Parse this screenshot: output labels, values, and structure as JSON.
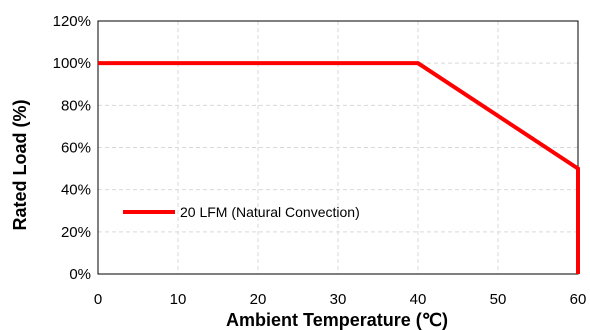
{
  "chart_data": {
    "type": "line",
    "xlabel": "Ambient Temperature (℃)",
    "ylabel": "Rated Load (%)",
    "xlim": [
      0,
      60
    ],
    "ylim": [
      0,
      120
    ],
    "x_ticks": [
      0,
      10,
      20,
      30,
      40,
      50,
      60
    ],
    "x_tick_labels": [
      "0",
      "10",
      "20",
      "30",
      "40",
      "50",
      "60"
    ],
    "y_ticks": [
      0,
      20,
      40,
      60,
      80,
      100,
      120
    ],
    "y_tick_labels": [
      "0%",
      "20%",
      "40%",
      "60%",
      "80%",
      "100%",
      "120%"
    ],
    "grid": true,
    "legend": {
      "placement": "middle-left"
    },
    "series": [
      {
        "name": "20 LFM (Natural Convection)",
        "color": "#ff0000",
        "x": [
          0,
          40,
          60,
          60
        ],
        "y": [
          100,
          100,
          50,
          0
        ]
      }
    ]
  }
}
